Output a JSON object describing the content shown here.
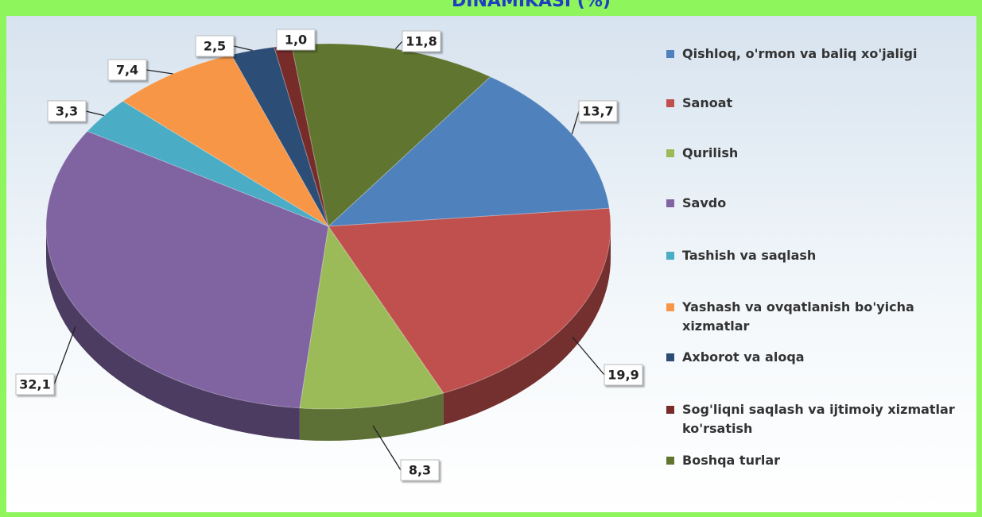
{
  "chart_data": {
    "type": "pie",
    "title": "DINAMIKASI (%)",
    "categories": [
      "Qishloq, o'rmon va baliq xo'jaligi",
      "Sanoat",
      "Qurilish",
      "Savdo",
      "Tashish va saqlash",
      "Yashash va ovqatlanish bo'yicha xizmatlar",
      "Axborot va aloqa",
      "Sog'liqni saqlash va ijtimoiy xizmatlar ko'rsatish",
      "Boshqa turlar"
    ],
    "values": [
      13.7,
      19.9,
      8.3,
      32.1,
      3.3,
      7.4,
      2.5,
      1.0,
      11.8
    ],
    "value_labels": [
      "13,7",
      "19,9",
      "8,3",
      "32,1",
      "3,3",
      "7,4",
      "2,5",
      "1,0",
      "11,8"
    ],
    "colors": [
      "#4f81bd",
      "#c0504d",
      "#9bbb59",
      "#8064a2",
      "#4bacc6",
      "#f79646",
      "#2c4d75",
      "#772c2a",
      "#5f7530"
    ],
    "legend": "right"
  }
}
